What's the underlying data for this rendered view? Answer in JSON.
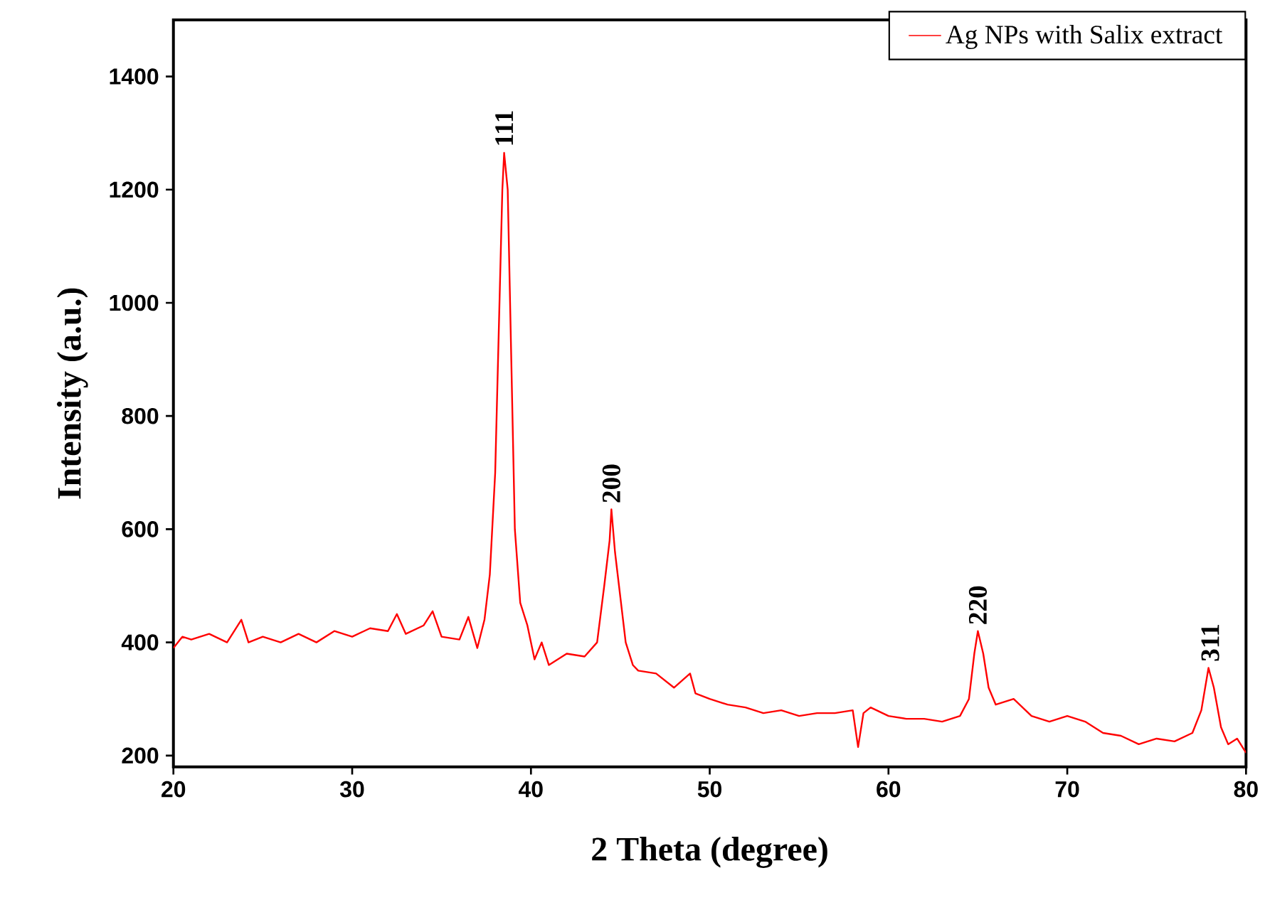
{
  "chart_data": {
    "type": "line",
    "xlabel": "2 Theta (degree)",
    "ylabel": "Intensity (a.u.)",
    "xlim": [
      20,
      80
    ],
    "ylim": [
      180,
      1500
    ],
    "xticks": [
      20,
      30,
      40,
      50,
      60,
      70,
      80
    ],
    "yticks": [
      200,
      400,
      600,
      800,
      1000,
      1200,
      1400
    ],
    "legend": "top right",
    "marker": "none",
    "line_style": "solid",
    "annotations": [
      {
        "text": "111",
        "x": 38.5,
        "y": 1265
      },
      {
        "text": "200",
        "x": 44.5,
        "y": 635
      },
      {
        "text": "220",
        "x": 65,
        "y": 420
      },
      {
        "text": "311",
        "x": 78,
        "y": 355
      }
    ],
    "series": [
      {
        "name": "Ag NPs with Salix extract",
        "color": "#ff0000",
        "x": [
          20,
          20.5,
          21,
          22,
          23,
          23.8,
          24.2,
          25,
          26,
          27,
          28,
          29,
          30,
          31,
          32,
          32.5,
          33,
          34,
          34.5,
          35,
          36,
          36.5,
          37,
          37.4,
          37.7,
          38,
          38.2,
          38.4,
          38.5,
          38.7,
          38.9,
          39.1,
          39.4,
          39.8,
          40.2,
          40.6,
          41,
          42,
          43,
          43.7,
          44.1,
          44.4,
          44.5,
          44.7,
          45,
          45.3,
          45.7,
          46,
          47,
          48,
          48.9,
          49.2,
          50,
          51,
          52,
          53,
          54,
          55,
          56,
          57,
          58,
          58.3,
          58.6,
          59,
          60,
          61,
          62,
          63,
          64,
          64.5,
          64.8,
          65,
          65.3,
          65.6,
          66,
          67,
          68,
          69,
          70,
          71,
          72,
          73,
          74,
          75,
          76,
          77,
          77.5,
          77.9,
          78.2,
          78.6,
          79,
          79.5,
          80
        ],
        "values": [
          390,
          410,
          405,
          415,
          400,
          440,
          400,
          410,
          400,
          415,
          400,
          420,
          410,
          425,
          420,
          450,
          415,
          430,
          455,
          410,
          405,
          445,
          390,
          440,
          520,
          700,
          950,
          1200,
          1265,
          1200,
          900,
          600,
          470,
          430,
          370,
          400,
          360,
          380,
          375,
          400,
          500,
          580,
          635,
          560,
          480,
          400,
          360,
          350,
          345,
          320,
          345,
          310,
          300,
          290,
          285,
          275,
          280,
          270,
          275,
          275,
          280,
          215,
          275,
          285,
          270,
          265,
          265,
          260,
          270,
          300,
          380,
          420,
          380,
          320,
          290,
          300,
          270,
          260,
          270,
          260,
          240,
          235,
          220,
          230,
          225,
          240,
          280,
          355,
          320,
          250,
          220,
          230,
          205
        ]
      }
    ]
  }
}
